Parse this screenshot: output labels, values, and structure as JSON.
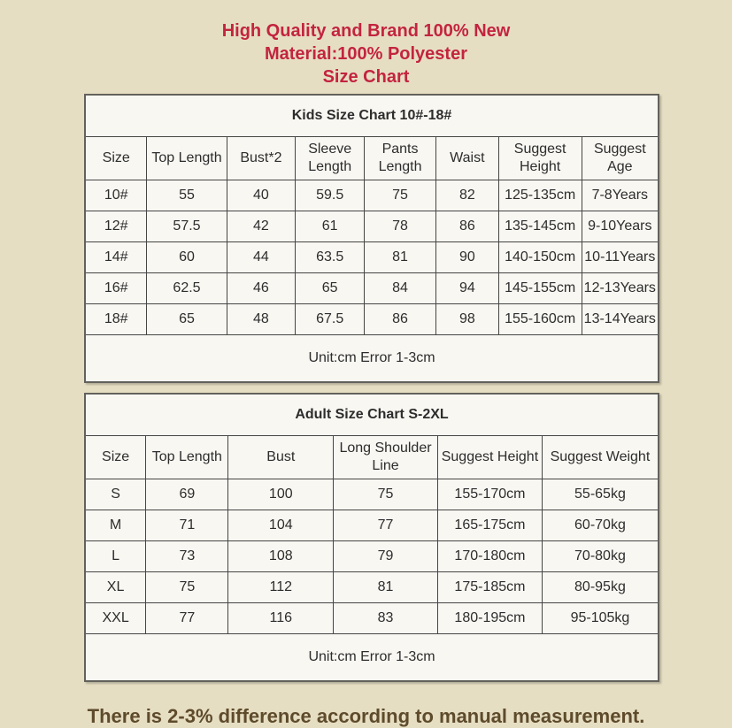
{
  "page": {
    "background_color": "#e6dec3",
    "accent_red": "#c32440",
    "note_brown": "#5e4b2b"
  },
  "intro": {
    "line1": "High Quality and Brand 100% New",
    "line2": "Material:100% Polyester",
    "line3": "Size Chart"
  },
  "kids_table": {
    "title": "Kids Size Chart 10#-18#",
    "headers": [
      "Size",
      "Top Length",
      "Bust*2",
      "Sleeve Length",
      "Pants Length",
      "Waist",
      "Suggest Height",
      "Suggest Age"
    ],
    "rows": [
      [
        "10#",
        "55",
        "40",
        "59.5",
        "75",
        "82",
        "125-135cm",
        "7-8Years"
      ],
      [
        "12#",
        "57.5",
        "42",
        "61",
        "78",
        "86",
        "135-145cm",
        "9-10Years"
      ],
      [
        "14#",
        "60",
        "44",
        "63.5",
        "81",
        "90",
        "140-150cm",
        "10-11Years"
      ],
      [
        "16#",
        "62.5",
        "46",
        "65",
        "84",
        "94",
        "145-155cm",
        "12-13Years"
      ],
      [
        "18#",
        "65",
        "48",
        "67.5",
        "86",
        "98",
        "155-160cm",
        "13-14Years"
      ]
    ],
    "footer": "Unit:cm Error 1-3cm"
  },
  "adult_table": {
    "title": "Adult Size Chart S-2XL",
    "headers": [
      "Size",
      "Top Length",
      "Bust",
      "Long Shoulder Line",
      "Suggest Height",
      "Suggest Weight"
    ],
    "rows": [
      [
        "S",
        "69",
        "100",
        "75",
        "155-170cm",
        "55-65kg"
      ],
      [
        "M",
        "71",
        "104",
        "77",
        "165-175cm",
        "60-70kg"
      ],
      [
        "L",
        "73",
        "108",
        "79",
        "170-180cm",
        "70-80kg"
      ],
      [
        "XL",
        "75",
        "112",
        "81",
        "175-185cm",
        "80-95kg"
      ],
      [
        "XXL",
        "77",
        "116",
        "83",
        "180-195cm",
        "95-105kg"
      ]
    ],
    "footer": "Unit:cm Error 1-3cm"
  },
  "note": "There is 2-3% difference according to manual measurement."
}
